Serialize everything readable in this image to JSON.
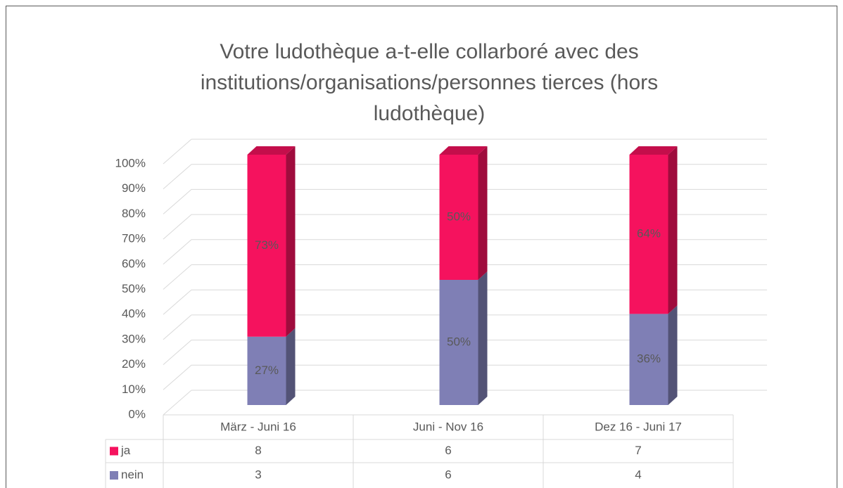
{
  "chart_data": {
    "type": "stacked_bar_3d",
    "title": [
      "Votre ludothèque a-t-elle collarboré avec des",
      "institutions/organisations/personnes tierces (hors",
      "ludothèque)"
    ],
    "categories": [
      "März - Juni 16",
      "Juni - Nov 16",
      "Dez 16 - Juni 17"
    ],
    "series": [
      {
        "name": "ja",
        "color": "#f5125e",
        "values": [
          72.7,
          50,
          63.6
        ],
        "value_labels": [
          "73%",
          "50%",
          "64%"
        ]
      },
      {
        "name": "nein",
        "color": "#7f7fb5",
        "values": [
          27.3,
          50,
          36.4
        ],
        "value_labels": [
          "27%",
          "50%",
          "36%"
        ]
      }
    ],
    "stack_order": [
      "nein",
      "ja"
    ],
    "ylim": [
      0,
      100
    ],
    "yticks": [
      {
        "value": 0,
        "label": "0%"
      },
      {
        "value": 10,
        "label": "10%"
      },
      {
        "value": 20,
        "label": "20%"
      },
      {
        "value": 30,
        "label": "30%"
      },
      {
        "value": 40,
        "label": "40%"
      },
      {
        "value": 50,
        "label": "50%"
      },
      {
        "value": 60,
        "label": "60%"
      },
      {
        "value": 70,
        "label": "70%"
      },
      {
        "value": 80,
        "label": "80%"
      },
      {
        "value": 90,
        "label": "90%"
      },
      {
        "value": 100,
        "label": "100%"
      }
    ],
    "grid": true
  },
  "data_table": {
    "rows": [
      [
        8,
        6,
        7
      ],
      [
        3,
        6,
        4
      ]
    ]
  }
}
